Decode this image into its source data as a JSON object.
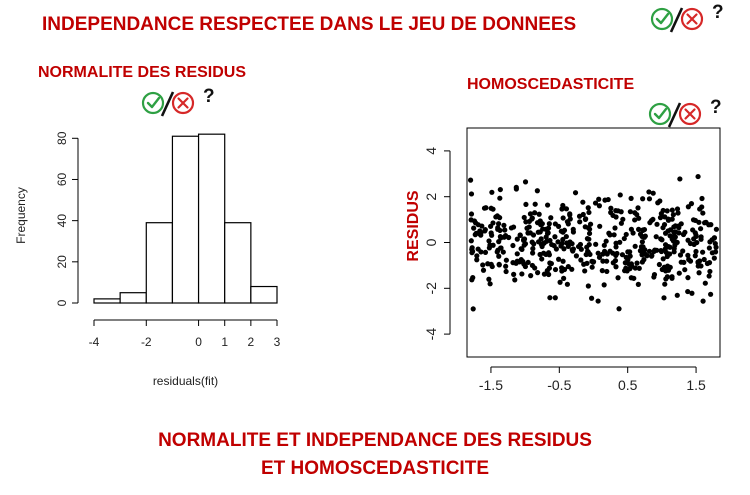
{
  "titles": {
    "top": "INDEPENDANCE RESPECTEE DANS LE JEU DE DONNEES",
    "histogram": "NORMALITE DES RESIDUS",
    "scatter": "HOMOSCEDASTICITE",
    "bottom_line1": "NORMALITE ET INDEPENDANCE DES RESIDUS",
    "bottom_line2": "ET HOMOSCEDASTICITE"
  },
  "status_marks": {
    "question": "?"
  },
  "colors": {
    "title_red": "#c00000",
    "check_green": "#2ea043",
    "cross_red": "#d62828"
  },
  "icons": [
    "check-circle-icon",
    "slash-icon",
    "cross-circle-icon"
  ],
  "chart_data": [
    {
      "type": "bar",
      "subtype": "histogram",
      "bins": [
        [
          -4,
          -3
        ],
        [
          -3,
          -2
        ],
        [
          -2,
          -1
        ],
        [
          -1,
          0
        ],
        [
          0,
          1
        ],
        [
          1,
          2
        ],
        [
          2,
          3
        ]
      ],
      "values": [
        2,
        5,
        39,
        81,
        82,
        39,
        8
      ],
      "xlabel": "residuals(fit)",
      "ylabel": "Frequency",
      "x_ticks": [
        -4,
        -2,
        0,
        1,
        2,
        3
      ],
      "y_ticks": [
        0,
        20,
        40,
        60,
        80
      ],
      "xlim": [
        -4,
        3
      ],
      "ylim": [
        0,
        85
      ]
    },
    {
      "type": "scatter",
      "ylabel": "RESIDUS",
      "x_ticks": [
        -1.5,
        -0.5,
        0.5,
        1.5
      ],
      "y_ticks": [
        -4,
        -2,
        0,
        2,
        4
      ],
      "xlim": [
        -1.85,
        1.85
      ],
      "ylim": [
        -5,
        5
      ],
      "n_points": 500,
      "mean": 0,
      "approx_sd": 1,
      "x_distribution": "uniform over [-1.8, 1.8]"
    }
  ]
}
